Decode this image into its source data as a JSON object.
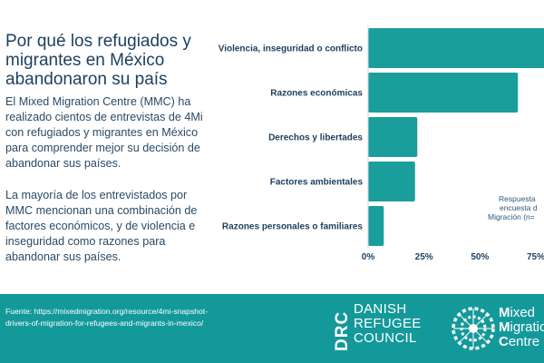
{
  "title": "Por qué los refugiados y migrantes en México abandonaron su país",
  "paragraphs": [
    "El Mixed Migration Centre (MMC) ha realizado cientos de entrevistas de 4Mi con refugiados y migrantes en México para comprender mejor su decisión de abandonar sus países.",
    "La mayoría de los entrevistados por MMC mencionan una combinación de factores económicos, y de violencia e inseguridad como razones para abandonar sus países."
  ],
  "chart_data": {
    "type": "bar",
    "orientation": "horizontal",
    "categories": [
      "Violencia, inseguridad o conflicto",
      "Razones económicas",
      "Derechos y libertades",
      "Factores ambientales",
      "Razones personales o familiares"
    ],
    "values": [
      81,
      67,
      22,
      21,
      7
    ],
    "xlim": [
      0,
      90
    ],
    "x_ticks": [
      "0%",
      "25%",
      "50%",
      "75%"
    ],
    "x_tick_values": [
      0,
      25,
      50,
      75
    ],
    "bar_color": "#1a9e9c",
    "annotation": [
      "Respuesta",
      "encuesta d",
      "Migración (n="
    ]
  },
  "footer": {
    "source": "Fuente: https://mixedmigration.org/resource/4mi-snapshot-drivers-of-migration-for-refugees-and-migrants-in-mexico/",
    "drc_mark": "DRC",
    "drc_lines": [
      "DANISH",
      "REFUGEE",
      "COUNCIL"
    ],
    "mmc_lines": [
      {
        "cap": "M",
        "rest": "ixed"
      },
      {
        "cap": "M",
        "rest": "igratio"
      },
      {
        "cap": "C",
        "rest": "entre"
      }
    ],
    "background": "#14999b"
  }
}
